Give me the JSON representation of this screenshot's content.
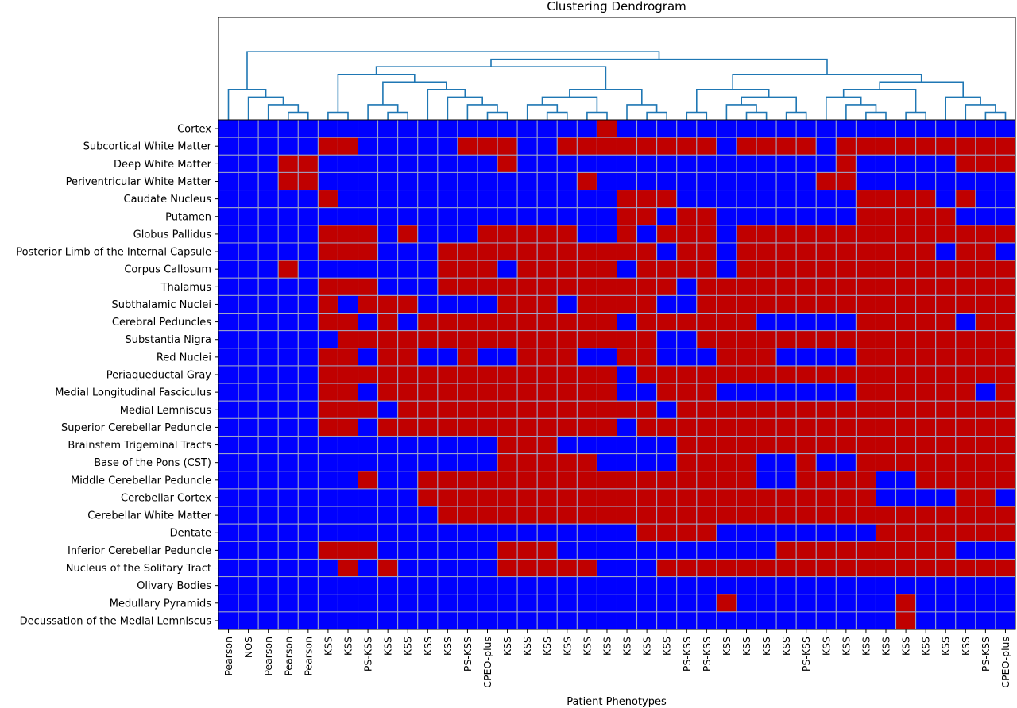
{
  "chart_data": {
    "type": "heatmap",
    "title": "Clustering Dendrogram",
    "xlabel": "Patient Phenotypes",
    "ylabel": "",
    "colors": {
      "blue": "#0000ff",
      "red": "#c00000",
      "grid": "#9fa6c8",
      "dendrogram": "#1f77b4"
    },
    "value_legend": {
      "0": "blue",
      "1": "red"
    },
    "columns": [
      "Pearson",
      "NOS",
      "Pearson",
      "Pearson",
      "Pearson",
      "KSS",
      "KSS",
      "PS-KSS",
      "KSS",
      "KSS",
      "KSS",
      "KSS",
      "PS-KSS",
      "CPEO-plus",
      "KSS",
      "KSS",
      "KSS",
      "KSS",
      "KSS",
      "KSS",
      "KSS",
      "KSS",
      "KSS",
      "PS-KSS",
      "PS-KSS",
      "KSS",
      "KSS",
      "KSS",
      "KSS",
      "PS-KSS",
      "KSS",
      "KSS",
      "KSS",
      "KSS",
      "KSS",
      "KSS",
      "KSS",
      "KSS",
      "PS-KSS",
      "CPEO-plus"
    ],
    "rows": [
      "Cortex",
      "Subcortical White Matter",
      "Deep White Matter",
      "Periventricular White Matter",
      "Caudate Nucleus",
      "Putamen",
      "Globus Pallidus",
      "Posterior Limb of the Internal Capsule",
      "Corpus Callosum",
      "Thalamus",
      "Subthalamic Nuclei",
      "Cerebral Peduncles",
      "Substantia Nigra",
      "Red Nuclei",
      "Periaqueductal Gray",
      "Medial Longitudinal Fasciculus",
      "Medial Lemniscus",
      "Superior Cerebellar Peduncle",
      "Brainstem Trigeminal Tracts",
      "Base of the Pons (CST)",
      "Middle Cerebellar Peduncle",
      "Cerebellar Cortex",
      "Cerebellar White Matter",
      "Dentate",
      "Inferior Cerebellar Peduncle",
      "Nucleus of the Solitary Tract",
      "Olivary Bodies",
      "Medullary Pyramids",
      "Decussation of the Medial Lemniscus"
    ],
    "matrix": [
      "0000000000000000000100000000000000000000",
      "0000011000001110011111111011110111111111",
      "0001100000000010000000000000000100000111",
      "0001100000000000001000000000001100000000",
      "0000010000000000000011100000000011110100",
      "0000000000000000000011011000000011111000",
      "0000011101000111110010111011111111111111",
      "0000011100011111111111011011111111110110",
      "0001000000011101111101111011111111111111",
      "0000011100011111111111101111111111111111",
      "0000010111000011101111001111111111111111",
      "0000011010111111111101111110000011111011",
      "0000001111111111111111001111111111111111",
      "0000011011001001110011000111000011111111",
      "0000011111111111111101111111111111111111",
      "0000011011111111111100111000000011111101",
      "0000011101111111111111011111111111111111",
      "0000011011111111111101111111111111111111",
      "0000000000000011100000011111111111111111",
      "0000000000000011111000011110010011111111",
      "0000000100111111111111111110011110011111",
      "0000000000111111111111111111111110000110",
      "0000000000011111111111111111111111111111",
      "0000000000000000000001111000000001111111",
      "0000011100000011100000000000111111111000",
      "0000001010000011111000111111111111111111",
      "0000000000000000000000000000000000000000",
      "0000000000000000000000000100000000100000",
      "0000000000000000000000000000000000100000"
    ]
  }
}
